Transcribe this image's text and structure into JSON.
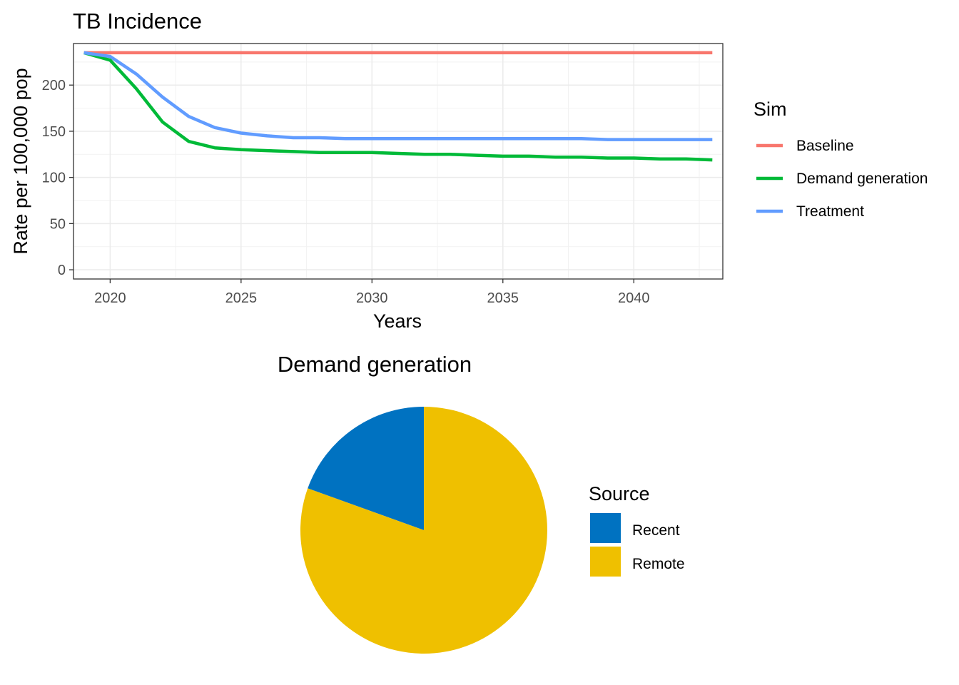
{
  "chart_data": [
    {
      "type": "line",
      "title": "TB Incidence",
      "xlabel": "Years",
      "ylabel": "Rate per 100,000 pop",
      "xlim": [
        2018.6,
        2043.4
      ],
      "ylim": [
        -10,
        245
      ],
      "x_ticks": [
        2020,
        2025,
        2030,
        2035,
        2040
      ],
      "y_ticks": [
        0,
        50,
        100,
        150,
        200
      ],
      "grid": true,
      "legend": {
        "title": "Sim",
        "position": "right"
      },
      "x": [
        2019,
        2020,
        2021,
        2022,
        2023,
        2024,
        2025,
        2026,
        2027,
        2028,
        2029,
        2030,
        2031,
        2032,
        2033,
        2034,
        2035,
        2036,
        2037,
        2038,
        2039,
        2040,
        2041,
        2042,
        2043
      ],
      "series": [
        {
          "name": "Baseline",
          "color": "#F8766D",
          "values": [
            235,
            235,
            235,
            235,
            235,
            235,
            235,
            235,
            235,
            235,
            235,
            235,
            235,
            235,
            235,
            235,
            235,
            235,
            235,
            235,
            235,
            235,
            235,
            235,
            235
          ]
        },
        {
          "name": "Demand generation",
          "color": "#00BA38",
          "values": [
            235,
            227,
            196,
            160,
            139,
            132,
            130,
            129,
            128,
            127,
            127,
            127,
            126,
            125,
            125,
            124,
            123,
            123,
            122,
            122,
            121,
            121,
            120,
            120,
            119
          ]
        },
        {
          "name": "Treatment",
          "color": "#619CFF",
          "values": [
            235,
            231,
            212,
            187,
            166,
            154,
            148,
            145,
            143,
            143,
            142,
            142,
            142,
            142,
            142,
            142,
            142,
            142,
            142,
            142,
            141,
            141,
            141,
            141,
            141
          ]
        }
      ]
    },
    {
      "type": "pie",
      "title": "Demand generation",
      "legend": {
        "title": "Source",
        "position": "right"
      },
      "slices": [
        {
          "label": "Recent",
          "value": 0.195,
          "color": "#0072C1"
        },
        {
          "label": "Remote",
          "value": 0.805,
          "color": "#EFC000"
        }
      ]
    }
  ]
}
